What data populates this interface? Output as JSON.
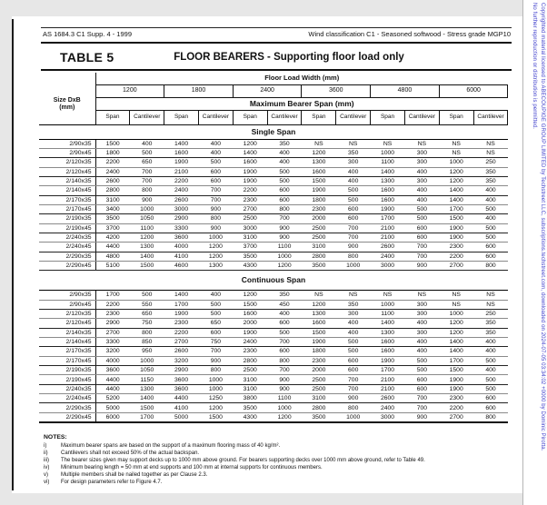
{
  "watermark": {
    "line1": "Copyrighted material licensed to ABECOUPIGE GROUP LIMITED by Techstreet LLC, subscriptions.techstreet.com, downloaded on 2024-07-05 03:34:02 +0000 by Dominic Pirotta.",
    "line2": "No further reproduction or distribution is permitted.",
    "color": "#4040cc"
  },
  "doc_header": {
    "left": "AS 1684.3 C1 Supp. 4  - 1999",
    "right": "Wind classification C1 - Seasoned softwood - Stress grade MGP10"
  },
  "table": {
    "label": "TABLE 5",
    "title": "FLOOR BEARERS - Supporting floor load only",
    "size_header": "Size DxB\n(mm)",
    "flw_header": "Floor Load Width (mm)",
    "widths": [
      "1200",
      "1800",
      "2400",
      "3600",
      "4800",
      "6000"
    ],
    "span_header": "Maximum Bearer Span (mm)",
    "sub_headers": [
      "Span",
      "Cantilever"
    ],
    "sections": [
      {
        "name": "Single Span",
        "rows": [
          {
            "size": "2/90x35",
            "values": [
              "1500",
              "400",
              "1400",
              "400",
              "1200",
              "350",
              "NS",
              "NS",
              "NS",
              "NS",
              "NS",
              "NS"
            ]
          },
          {
            "size": "2/90x45",
            "values": [
              "1800",
              "500",
              "1600",
              "400",
              "1400",
              "400",
              "1200",
              "350",
              "1000",
              "300",
              "NS",
              "NS"
            ]
          },
          {
            "size": "2/120x35",
            "values": [
              "2200",
              "650",
              "1900",
              "500",
              "1600",
              "400",
              "1300",
              "300",
              "1100",
              "300",
              "1000",
              "250"
            ]
          },
          {
            "size": "2/120x45",
            "values": [
              "2400",
              "700",
              "2100",
              "600",
              "1900",
              "500",
              "1600",
              "400",
              "1400",
              "400",
              "1200",
              "350"
            ]
          },
          {
            "size": "2/140x35",
            "values": [
              "2600",
              "700",
              "2200",
              "600",
              "1900",
              "500",
              "1500",
              "400",
              "1300",
              "300",
              "1200",
              "350"
            ]
          },
          {
            "size": "2/140x45",
            "values": [
              "2800",
              "800",
              "2400",
              "700",
              "2200",
              "600",
              "1900",
              "500",
              "1600",
              "400",
              "1400",
              "400"
            ]
          },
          {
            "size": "2/170x35",
            "values": [
              "3100",
              "900",
              "2600",
              "700",
              "2300",
              "600",
              "1800",
              "500",
              "1600",
              "400",
              "1400",
              "400"
            ]
          },
          {
            "size": "2/170x45",
            "values": [
              "3400",
              "1000",
              "3000",
              "900",
              "2700",
              "800",
              "2300",
              "600",
              "1900",
              "500",
              "1700",
              "500"
            ]
          },
          {
            "size": "2/190x35",
            "values": [
              "3500",
              "1050",
              "2900",
              "800",
              "2500",
              "700",
              "2000",
              "600",
              "1700",
              "500",
              "1500",
              "400"
            ]
          },
          {
            "size": "2/190x45",
            "values": [
              "3700",
              "1100",
              "3300",
              "900",
              "3000",
              "900",
              "2500",
              "700",
              "2100",
              "600",
              "1900",
              "500"
            ]
          },
          {
            "size": "2/240x35",
            "values": [
              "4200",
              "1200",
              "3600",
              "1000",
              "3100",
              "900",
              "2500",
              "700",
              "2100",
              "600",
              "1900",
              "500"
            ]
          },
          {
            "size": "2/240x45",
            "values": [
              "4400",
              "1300",
              "4000",
              "1200",
              "3700",
              "1100",
              "3100",
              "900",
              "2600",
              "700",
              "2300",
              "600"
            ]
          },
          {
            "size": "2/290x35",
            "values": [
              "4800",
              "1400",
              "4100",
              "1200",
              "3500",
              "1000",
              "2800",
              "800",
              "2400",
              "700",
              "2200",
              "600"
            ]
          },
          {
            "size": "2/290x45",
            "values": [
              "5100",
              "1500",
              "4600",
              "1300",
              "4300",
              "1200",
              "3500",
              "1000",
              "3000",
              "900",
              "2700",
              "800"
            ]
          }
        ]
      },
      {
        "name": "Continuous Span",
        "rows": [
          {
            "size": "2/90x35",
            "values": [
              "1700",
              "500",
              "1400",
              "400",
              "1200",
              "350",
              "NS",
              "NS",
              "NS",
              "NS",
              "NS",
              "NS"
            ]
          },
          {
            "size": "2/90x45",
            "values": [
              "2200",
              "550",
              "1700",
              "500",
              "1500",
              "450",
              "1200",
              "350",
              "1000",
              "300",
              "NS",
              "NS"
            ]
          },
          {
            "size": "2/120x35",
            "values": [
              "2300",
              "650",
              "1900",
              "500",
              "1600",
              "400",
              "1300",
              "300",
              "1100",
              "300",
              "1000",
              "250"
            ]
          },
          {
            "size": "2/120x45",
            "values": [
              "2900",
              "750",
              "2300",
              "650",
              "2000",
              "600",
              "1600",
              "400",
              "1400",
              "400",
              "1200",
              "350"
            ]
          },
          {
            "size": "2/140x35",
            "values": [
              "2700",
              "800",
              "2200",
              "600",
              "1900",
              "500",
              "1500",
              "400",
              "1300",
              "300",
              "1200",
              "350"
            ]
          },
          {
            "size": "2/140x45",
            "values": [
              "3300",
              "850",
              "2700",
              "750",
              "2400",
              "700",
              "1900",
              "500",
              "1600",
              "400",
              "1400",
              "400"
            ]
          },
          {
            "size": "2/170x35",
            "values": [
              "3200",
              "950",
              "2600",
              "700",
              "2300",
              "600",
              "1800",
              "500",
              "1600",
              "400",
              "1400",
              "400"
            ]
          },
          {
            "size": "2/170x45",
            "values": [
              "4000",
              "1000",
              "3200",
              "900",
              "2800",
              "800",
              "2300",
              "600",
              "1900",
              "500",
              "1700",
              "500"
            ]
          },
          {
            "size": "2/190x35",
            "values": [
              "3600",
              "1050",
              "2900",
              "800",
              "2500",
              "700",
              "2000",
              "600",
              "1700",
              "500",
              "1500",
              "400"
            ]
          },
          {
            "size": "2/190x45",
            "values": [
              "4400",
              "1150",
              "3600",
              "1000",
              "3100",
              "900",
              "2500",
              "700",
              "2100",
              "600",
              "1900",
              "500"
            ]
          },
          {
            "size": "2/240x35",
            "values": [
              "4400",
              "1300",
              "3600",
              "1000",
              "3100",
              "900",
              "2500",
              "700",
              "2100",
              "600",
              "1900",
              "500"
            ]
          },
          {
            "size": "2/240x45",
            "values": [
              "5200",
              "1400",
              "4400",
              "1250",
              "3800",
              "1100",
              "3100",
              "900",
              "2600",
              "700",
              "2300",
              "600"
            ]
          },
          {
            "size": "2/290x35",
            "values": [
              "5000",
              "1500",
              "4100",
              "1200",
              "3500",
              "1000",
              "2800",
              "800",
              "2400",
              "700",
              "2200",
              "600"
            ]
          },
          {
            "size": "2/290x45",
            "values": [
              "6000",
              "1700",
              "5000",
              "1500",
              "4300",
              "1200",
              "3500",
              "1000",
              "3000",
              "900",
              "2700",
              "800"
            ]
          }
        ]
      }
    ]
  },
  "notes": {
    "heading": "NOTES:",
    "items": [
      {
        "num": "i)",
        "text": "Maximum bearer spans are based on the support of a maximum flooring mass of 40 kg/m²."
      },
      {
        "num": "ii)",
        "text": "Cantilevers shall not exceed 50% of the actual backspan."
      },
      {
        "num": "iii)",
        "text": "The bearer sizes given may support decks up to 1000 mm above ground. For bearers supporting decks over 1000 mm above ground, refer to Table 49."
      },
      {
        "num": "iv)",
        "text": "Minimum bearing length = 50 mm at end supports and 100 mm at internal supports for continuous members."
      },
      {
        "num": "v)",
        "text": "Multiple members shall be nailed together as per Clause 2.3."
      },
      {
        "num": "vi)",
        "text": "For design parameters refer to Figure 4.7."
      }
    ]
  }
}
